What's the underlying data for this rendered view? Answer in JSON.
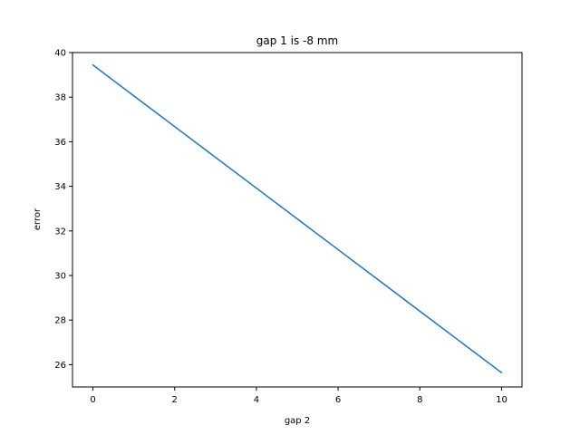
{
  "chart_data": {
    "type": "line",
    "title": "gap 1 is -8 mm",
    "xlabel": "gap 2",
    "ylabel": "error",
    "xlim": [
      -0.5,
      10.5
    ],
    "ylim": [
      25.0,
      40.0
    ],
    "xticks": [
      0,
      2,
      4,
      6,
      8,
      10
    ],
    "yticks": [
      26,
      28,
      30,
      32,
      34,
      36,
      38,
      40
    ],
    "xtick_labels": [
      "0",
      "2",
      "4",
      "6",
      "8",
      "10"
    ],
    "ytick_labels": [
      "26",
      "28",
      "30",
      "32",
      "34",
      "36",
      "38",
      "40"
    ],
    "grid": false,
    "series": [
      {
        "color": "#1f77b4",
        "x": [
          0,
          1,
          2,
          3,
          4,
          5,
          6,
          7,
          8,
          9,
          10
        ],
        "y": [
          39.44,
          38.06,
          36.68,
          35.3,
          33.92,
          32.54,
          31.16,
          29.78,
          28.4,
          27.02,
          25.64
        ]
      }
    ]
  }
}
